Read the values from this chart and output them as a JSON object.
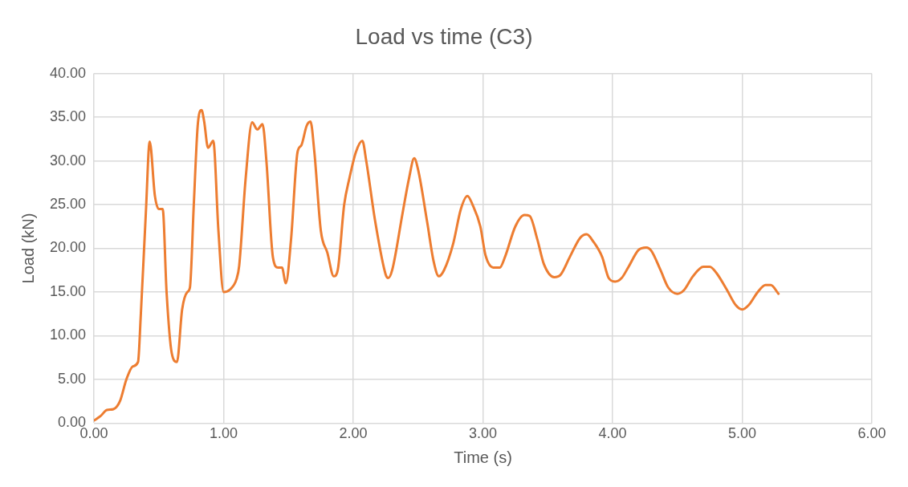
{
  "chart_data": {
    "type": "line",
    "title": "Load vs time (C3)",
    "xlabel": "Time (s)",
    "ylabel": "Load (kN)",
    "xlim": [
      0,
      6
    ],
    "xticks": [
      {
        "value": 0,
        "label": "0.00"
      },
      {
        "value": 1,
        "label": "1.00"
      },
      {
        "value": 2,
        "label": "2.00"
      },
      {
        "value": 3,
        "label": "3.00"
      },
      {
        "value": 4,
        "label": "4.00"
      },
      {
        "value": 5,
        "label": "5.00"
      },
      {
        "value": 6,
        "label": "6.00"
      }
    ],
    "ylim": [
      0,
      40
    ],
    "yticks": [
      {
        "value": 0,
        "label": "0.00"
      },
      {
        "value": 5,
        "label": "5.00"
      },
      {
        "value": 10,
        "label": "10.00"
      },
      {
        "value": 15,
        "label": "15.00"
      },
      {
        "value": 20,
        "label": "20.00"
      },
      {
        "value": 25,
        "label": "25.00"
      },
      {
        "value": 30,
        "label": "30.00"
      },
      {
        "value": 35,
        "label": "35.00"
      },
      {
        "value": 40,
        "label": "40.00"
      }
    ],
    "grid": true,
    "legend": false,
    "marker": "none",
    "line_style": "solid",
    "x": [
      0,
      0.05,
      0.1,
      0.15,
      0.2,
      0.25,
      0.3,
      0.34,
      0.36,
      0.4,
      0.43,
      0.47,
      0.5,
      0.53,
      0.56,
      0.6,
      0.64,
      0.68,
      0.72,
      0.74,
      0.77,
      0.8,
      0.83,
      0.85,
      0.88,
      0.92,
      0.96,
      1.0,
      1.05,
      1.1,
      1.12,
      1.17,
      1.22,
      1.26,
      1.3,
      1.33,
      1.38,
      1.42,
      1.45,
      1.48,
      1.52,
      1.57,
      1.6,
      1.64,
      1.67,
      1.7,
      1.75,
      1.8,
      1.85,
      1.88,
      1.93,
      1.97,
      2.02,
      2.07,
      2.1,
      2.17,
      2.25,
      2.27,
      2.3,
      2.38,
      2.43,
      2.47,
      2.5,
      2.57,
      2.62,
      2.66,
      2.7,
      2.77,
      2.83,
      2.88,
      2.92,
      2.98,
      3.02,
      3.08,
      3.13,
      3.17,
      3.25,
      3.32,
      3.36,
      3.42,
      3.47,
      3.55,
      3.6,
      3.67,
      3.75,
      3.8,
      3.85,
      3.92,
      3.97,
      4.02,
      4.07,
      4.12,
      4.2,
      4.26,
      4.3,
      4.37,
      4.43,
      4.5,
      4.55,
      4.62,
      4.7,
      4.75,
      4.8,
      4.88,
      4.95,
      5.0,
      5.05,
      5.12,
      5.18,
      5.22,
      5.28
    ],
    "series": [
      {
        "color": "#ed7d31",
        "values": [
          0.3,
          0.8,
          1.5,
          1.6,
          2.5,
          5,
          6.5,
          7,
          12,
          24,
          32.2,
          26,
          24.5,
          24.5,
          15,
          8,
          7,
          13,
          15,
          15.5,
          25,
          34,
          35.8,
          34.5,
          31.5,
          32.3,
          22,
          15,
          15.3,
          16.5,
          18,
          28,
          34.4,
          33.6,
          34.2,
          30,
          19,
          17.8,
          17.8,
          16,
          21,
          31,
          31.8,
          34,
          34.5,
          31,
          22,
          19.5,
          16.8,
          17.5,
          25,
          28,
          31,
          32.3,
          30,
          23,
          17,
          16.6,
          17.5,
          24,
          28,
          30.3,
          29,
          23,
          18.5,
          16.8,
          17.5,
          20.5,
          24.5,
          26,
          25,
          22.5,
          19.2,
          17.8,
          17.8,
          19,
          22.5,
          23.8,
          23.7,
          21,
          18.2,
          16.7,
          17,
          19,
          21.2,
          21.6,
          20.8,
          19,
          16.6,
          16.2,
          16.6,
          17.8,
          19.8,
          20.1,
          19.7,
          17.5,
          15.5,
          14.8,
          15.2,
          16.8,
          17.9,
          17.9,
          17.2,
          15.3,
          13.5,
          13,
          13.5,
          15,
          15.8,
          15.8,
          14.8
        ]
      }
    ]
  }
}
